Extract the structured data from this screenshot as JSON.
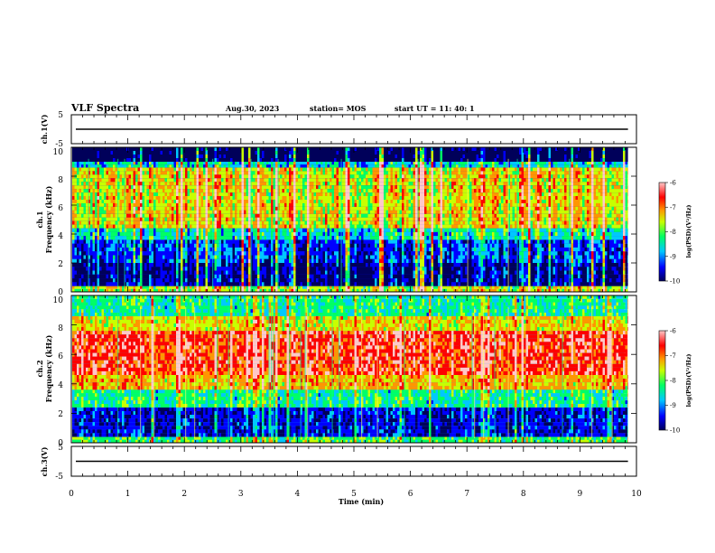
{
  "header": {
    "title": "VLF Spectra",
    "date": "Aug.30, 2023",
    "station": "station= MOS",
    "start": "start  UT =   11: 40: 1"
  },
  "chart_data": [
    {
      "type": "line",
      "panel": "ch1-waveform",
      "ylabel": "ch.1(V)",
      "ylim": [
        -5,
        5
      ],
      "yticks": [
        -5,
        5
      ],
      "x": [
        0,
        10
      ],
      "values": [
        0,
        0
      ],
      "xlim": [
        0,
        9.85
      ]
    },
    {
      "type": "heatmap",
      "panel": "ch1-spectrogram",
      "ylabel": [
        "ch.1",
        "Frequency  (kHz)"
      ],
      "ylim": [
        0,
        10
      ],
      "yticks": [
        0,
        2,
        4,
        6,
        8,
        10
      ],
      "xlim": [
        0,
        9.85
      ],
      "bands": [
        {
          "f_from": 0,
          "f_to": 0.4,
          "level": -7.8
        },
        {
          "f_from": 0.4,
          "f_to": 2.0,
          "level": -9.6
        },
        {
          "f_from": 2.0,
          "f_to": 3.6,
          "level": -9.2
        },
        {
          "f_from": 3.6,
          "f_to": 4.4,
          "level": -8.5
        },
        {
          "f_from": 4.4,
          "f_to": 8.6,
          "level": -7.6
        },
        {
          "f_from": 8.6,
          "f_to": 9.0,
          "level": -8.6
        },
        {
          "f_from": 9.0,
          "f_to": 10,
          "level": -10
        }
      ],
      "colorbar": {
        "label": "log(PSD)(V²/Hz)",
        "range": [
          -10,
          -6
        ],
        "ticks": [
          -10,
          -9,
          -8,
          -7,
          -6
        ]
      }
    },
    {
      "type": "heatmap",
      "panel": "ch2-spectrogram",
      "ylabel": [
        "ch.2",
        "Frequency  (kHz)"
      ],
      "ylim": [
        0,
        10
      ],
      "yticks": [
        0,
        2,
        4,
        6,
        8,
        10
      ],
      "xlim": [
        0,
        9.85
      ],
      "bands": [
        {
          "f_from": 0,
          "f_to": 0.4,
          "level": -8.2
        },
        {
          "f_from": 0.4,
          "f_to": 2.4,
          "level": -9.4
        },
        {
          "f_from": 2.4,
          "f_to": 3.6,
          "level": -8.4
        },
        {
          "f_from": 3.6,
          "f_to": 4.6,
          "level": -7.4
        },
        {
          "f_from": 4.6,
          "f_to": 7.6,
          "level": -6.8
        },
        {
          "f_from": 7.6,
          "f_to": 8.6,
          "level": -7.6
        },
        {
          "f_from": 8.6,
          "f_to": 10,
          "level": -8.4
        }
      ],
      "colorbar": {
        "label": "log(PSD)(V²/Hz)",
        "range": [
          -10,
          -6
        ],
        "ticks": [
          -10,
          -9,
          -8,
          -7,
          -6
        ]
      }
    },
    {
      "type": "line",
      "panel": "ch3-waveform",
      "ylabel": "ch.3(V)",
      "ylim": [
        -5,
        5
      ],
      "yticks": [
        -5,
        5
      ],
      "x": [
        0,
        10
      ],
      "values": [
        0,
        0
      ],
      "xlim": [
        0,
        9.85
      ],
      "xlabel": "Time  (min)",
      "xticks": [
        0,
        1,
        2,
        3,
        4,
        5,
        6,
        7,
        8,
        9,
        10
      ]
    }
  ],
  "colors": {
    "scale": [
      "#00005a",
      "#0000ff",
      "#00c8ff",
      "#00ff64",
      "#c8ff00",
      "#ff9600",
      "#ff0000",
      "#ffc8c8"
    ]
  }
}
